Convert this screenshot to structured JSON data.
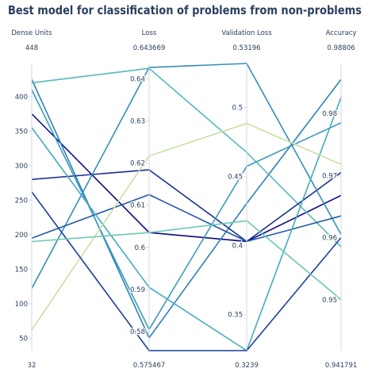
{
  "title": "Best model for classification of problems from non-problems",
  "chart_data": {
    "type": "parallel_coordinates",
    "title": "Best model for classification of problems from non-problems",
    "dimensions": [
      {
        "key": "dense_units",
        "label": "Dense Units",
        "range": [
          32,
          448
        ],
        "range_labels": [
          "32",
          "448"
        ],
        "ticks": [
          50,
          100,
          150,
          200,
          250,
          300,
          350,
          400
        ]
      },
      {
        "key": "loss",
        "label": "Loss",
        "range": [
          0.575467,
          0.643669
        ],
        "range_labels": [
          "0.575467",
          "0.643669"
        ],
        "ticks": [
          0.58,
          0.59,
          0.6,
          0.61,
          0.62,
          0.63,
          0.64
        ]
      },
      {
        "key": "val_loss",
        "label": "Validation Loss",
        "range": [
          0.3239,
          0.53196
        ],
        "range_labels": [
          "0.3239",
          "0.53196"
        ],
        "ticks": [
          0.35,
          0.4,
          0.45,
          0.5
        ]
      },
      {
        "key": "accuracy",
        "label": "Accuracy",
        "range": [
          0.941791,
          0.98806
        ],
        "range_labels": [
          "0.941791",
          "0.98806"
        ],
        "ticks": [
          0.95,
          0.96,
          0.97,
          0.98
        ]
      }
    ],
    "colorscale": [
      "#0d0887",
      "#1c3f96",
      "#2a73b4",
      "#3fa7c0",
      "#69c9b5",
      "#e8e89a"
    ],
    "lines": [
      {
        "color_value": 0.0,
        "values": [
          375,
          0.6035,
          0.403,
          0.9668
        ]
      },
      {
        "color_value": 0.45,
        "values": [
          425,
          0.5785,
          0.4305,
          0.9855
        ]
      },
      {
        "color_value": 0.7,
        "values": [
          420,
          0.6425,
          0.4675,
          0.9585
        ]
      },
      {
        "color_value": 0.15,
        "values": [
          280,
          0.6184,
          0.403,
          0.9705
        ]
      },
      {
        "color_value": 0.5,
        "values": [
          122,
          0.6427,
          0.53196,
          0.9605
        ]
      },
      {
        "color_value": 0.55,
        "values": [
          410,
          0.5805,
          0.4575,
          0.9785
        ]
      },
      {
        "color_value": 0.3,
        "values": [
          195,
          0.6125,
          0.403,
          0.9635
        ]
      },
      {
        "color_value": 0.62,
        "values": [
          355,
          0.5905,
          0.3239,
          0.9826
        ]
      },
      {
        "color_value": 0.95,
        "values": [
          62,
          0.6217,
          0.4885,
          0.9718
        ]
      },
      {
        "color_value": 0.2,
        "values": [
          262,
          0.575467,
          0.3239,
          0.96
        ]
      },
      {
        "color_value": 0.8,
        "values": [
          190,
          0.6035,
          0.418,
          0.95
        ]
      }
    ]
  }
}
